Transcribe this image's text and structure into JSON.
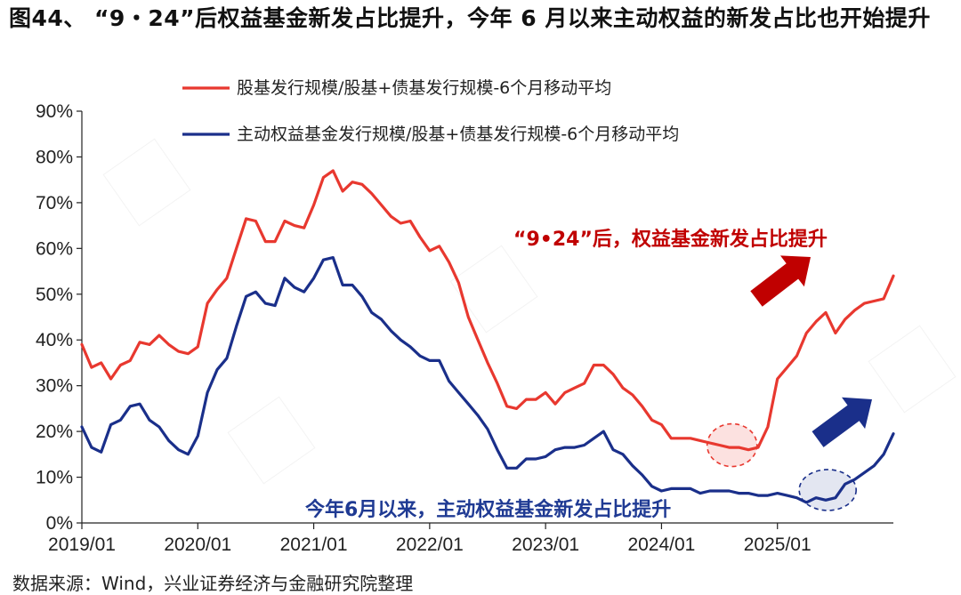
{
  "title": "图44、 “9・24”后权益基金新发占比提升，今年 6 月以来主动权益的新发占比也开始提升",
  "source": "数据来源：Wind，兴业证券经济与金融研究院整理",
  "colors": {
    "red": "#e8382f",
    "blue": "#1a2f8a",
    "dark_red": "#c00000"
  },
  "chart_data": {
    "type": "line",
    "ylim": [
      0,
      90
    ],
    "y_ticks": [
      0,
      10,
      20,
      30,
      40,
      50,
      60,
      70,
      80,
      90
    ],
    "y_tick_labels": [
      "0%",
      "10%",
      "20%",
      "30%",
      "40%",
      "50%",
      "60%",
      "70%",
      "80%",
      "90%"
    ],
    "x_tick_labels": [
      "2019/01",
      "2020/01",
      "2021/01",
      "2022/01",
      "2023/01",
      "2024/01",
      "2025/01"
    ],
    "x_start": "2019-01",
    "x_end": "2025-11",
    "legend_position": "top",
    "series": [
      {
        "name": "股基发行规模/股基+债基发行规模-6个月移动平均",
        "color": "#e8382f",
        "values": [
          39,
          34,
          35,
          31.5,
          34.5,
          35.5,
          39.5,
          39,
          41,
          39,
          37.5,
          37,
          38.5,
          48,
          51,
          53.5,
          60,
          66.5,
          66,
          61.5,
          61.5,
          66,
          65,
          64.5,
          69.5,
          75.5,
          77,
          72.5,
          74.5,
          74,
          72,
          69.5,
          67,
          65.5,
          66,
          62.5,
          59.5,
          60.5,
          57,
          52.5,
          45,
          40,
          35,
          30.5,
          25.5,
          25,
          27,
          27,
          28.5,
          26,
          28.5,
          29.5,
          30.5,
          34.5,
          34.5,
          32.5,
          29.5,
          28,
          25.5,
          22.5,
          21.5,
          18.5,
          18.5,
          18.5,
          18,
          17.5,
          17,
          16.5,
          16.5,
          16,
          16.5,
          21,
          31.5,
          34,
          36.5,
          41.5,
          44,
          46,
          41.5,
          44.5,
          46.5,
          48,
          48.5,
          49,
          54
        ]
      },
      {
        "name": "主动权益基金发行规模/股基+债基发行规模-6个月移动平均",
        "color": "#1a2f8a",
        "values": [
          21,
          16.5,
          15.5,
          21.5,
          22.5,
          25.5,
          26,
          22.5,
          21,
          18,
          16,
          15,
          19,
          28.5,
          33.5,
          36,
          43,
          49.5,
          50.5,
          48,
          47.5,
          53.5,
          51.5,
          50.5,
          53.5,
          57.5,
          58,
          52,
          52,
          49.5,
          46,
          44.5,
          42,
          40,
          38.5,
          36.5,
          35.5,
          35.5,
          31,
          28.5,
          26,
          23.5,
          20.5,
          16,
          12,
          12,
          14,
          14,
          14.5,
          16,
          16.5,
          16.5,
          17,
          18.5,
          20,
          16,
          15,
          12.5,
          10.5,
          8,
          7,
          7.5,
          7.5,
          7.5,
          6.5,
          7,
          7,
          7,
          6.5,
          6.5,
          6,
          6,
          6.5,
          6,
          5.5,
          4.5,
          5.5,
          5,
          5.5,
          8.5,
          9.5,
          11,
          12.5,
          15,
          19.5
        ]
      }
    ],
    "annotations": {
      "red": "“9•24”后，权益基金新发占比提升",
      "blue": "今年6月以来，主动权益基金新发占比提升"
    }
  }
}
